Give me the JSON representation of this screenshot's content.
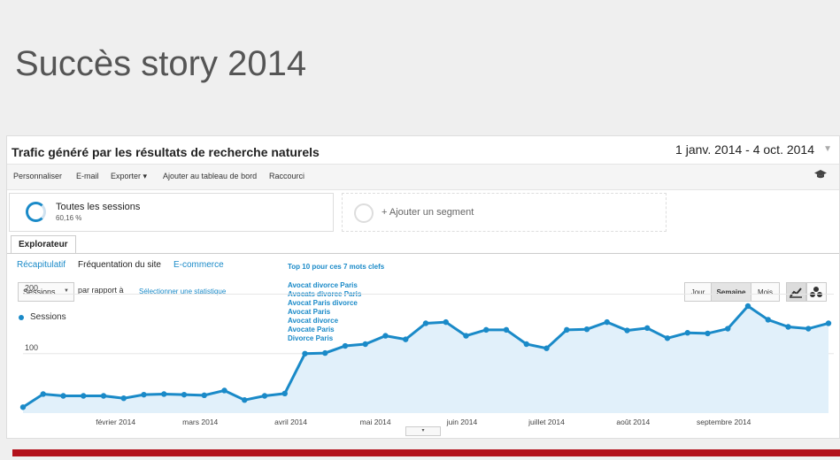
{
  "slide": {
    "title": "Succès story 2014"
  },
  "report": {
    "title": "Trafic généré par les résultats de recherche naturels",
    "date_range": "1 janv. 2014 - 4 oct. 2014",
    "date_caret": "▼"
  },
  "toolbar": {
    "personnaliser": "Personnaliser",
    "email": "E-mail",
    "exporter": "Exporter ▾",
    "ajouter": "Ajouter au tableau de bord",
    "raccourci": "Raccourci",
    "icon": "graduation-cap-icon"
  },
  "segments": {
    "active": {
      "label": "Toutes les sessions",
      "percent": "60,16 %"
    },
    "add": {
      "label": "+ Ajouter un segment"
    }
  },
  "tabs": {
    "explorer": "Explorateur"
  },
  "subtabs": [
    "Récapitulatif",
    "Fréquentation du site",
    "E-commerce"
  ],
  "annotation": {
    "title": "Top 10 pour ces 7 mots clefs",
    "keywords": [
      "Avocat divorce Paris",
      "Avocats divorce Paris",
      "Avocat Paris divorce",
      "Avocat Paris",
      "Avocat divorce",
      "Avocate Paris",
      "Divorce Paris"
    ]
  },
  "controls": {
    "metric": "Sessions",
    "metric_caret": "▼",
    "compare_label": "par rapport à",
    "select_stat": "Sélectionner une statistique",
    "granularity": [
      "Jour",
      "Semaine",
      "Mois"
    ],
    "active_granularity": "Semaine",
    "bottom_handle": "▾"
  },
  "colors": {
    "accent": "#1a8ac8",
    "fill": "#e1f0fa",
    "brand_bar": "#b3111b"
  },
  "chart_data": {
    "type": "area",
    "series": [
      {
        "name": "Sessions",
        "values": [
          10,
          32,
          29,
          29,
          29,
          25,
          31,
          32,
          31,
          30,
          38,
          22,
          29,
          33,
          100,
          101,
          113,
          116,
          130,
          124,
          151,
          153,
          130,
          140,
          140,
          116,
          109,
          140,
          141,
          153,
          139,
          143,
          126,
          135,
          134,
          142,
          180,
          157,
          145,
          142,
          151
        ]
      }
    ],
    "y_ticks": [
      "100",
      "200"
    ],
    "ylim": [
      0,
      235
    ],
    "x_labels": [
      "février 2014",
      "mars 2014",
      "avril 2014",
      "mai 2014",
      "juin 2014",
      "juillet 2014",
      "août 2014",
      "septembre 2014"
    ],
    "x_label_positions": [
      4.6,
      8.8,
      13.3,
      17.5,
      21.8,
      26.0,
      30.3,
      34.8
    ],
    "grid": true
  }
}
